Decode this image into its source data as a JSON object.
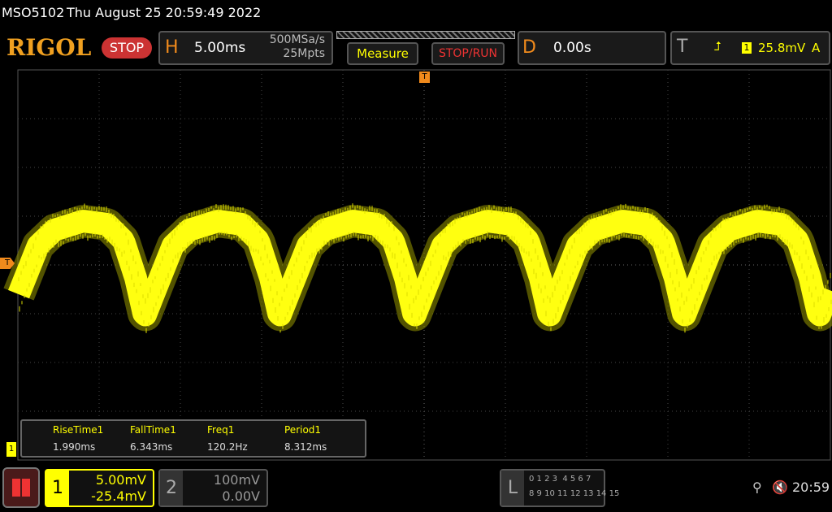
{
  "status_bar": {
    "model": "MSO5102",
    "datetime": "Thu August 25 20:59:49 2022"
  },
  "toolbar": {
    "logo": "RIGOL",
    "run_state": "STOP",
    "horizontal": {
      "label": "H",
      "timebase": "5.00ms",
      "sample_rate": "500MSa/s",
      "memory_depth": "25Mpts"
    },
    "buttons": [
      "Measure",
      "STOP/RUN"
    ],
    "delay": {
      "label": "D",
      "value": "0.00s"
    },
    "trigger": {
      "label": "T",
      "source": "1",
      "level": "25.8mV",
      "mode": "A"
    }
  },
  "markers": {
    "trigger_position": "T",
    "trigger_level": "T",
    "channel1": "1"
  },
  "measurements": {
    "headers": [
      "RiseTime1",
      "FallTime1",
      "Freq1",
      "Period1"
    ],
    "values": [
      "1.990ms",
      "6.343ms",
      "120.2Hz",
      "8.312ms"
    ]
  },
  "channels": [
    {
      "label": "1",
      "scale": "5.00mV",
      "offset": "-25.4mV"
    },
    {
      "label": "2",
      "scale": "100mV",
      "offset": "0.00V"
    }
  ],
  "logic": {
    "label": "L",
    "row1": "0 1 2 3  4 5 6 7",
    "row2": "8 9 10 11 12 13 14 15"
  },
  "clock": "20:59"
}
